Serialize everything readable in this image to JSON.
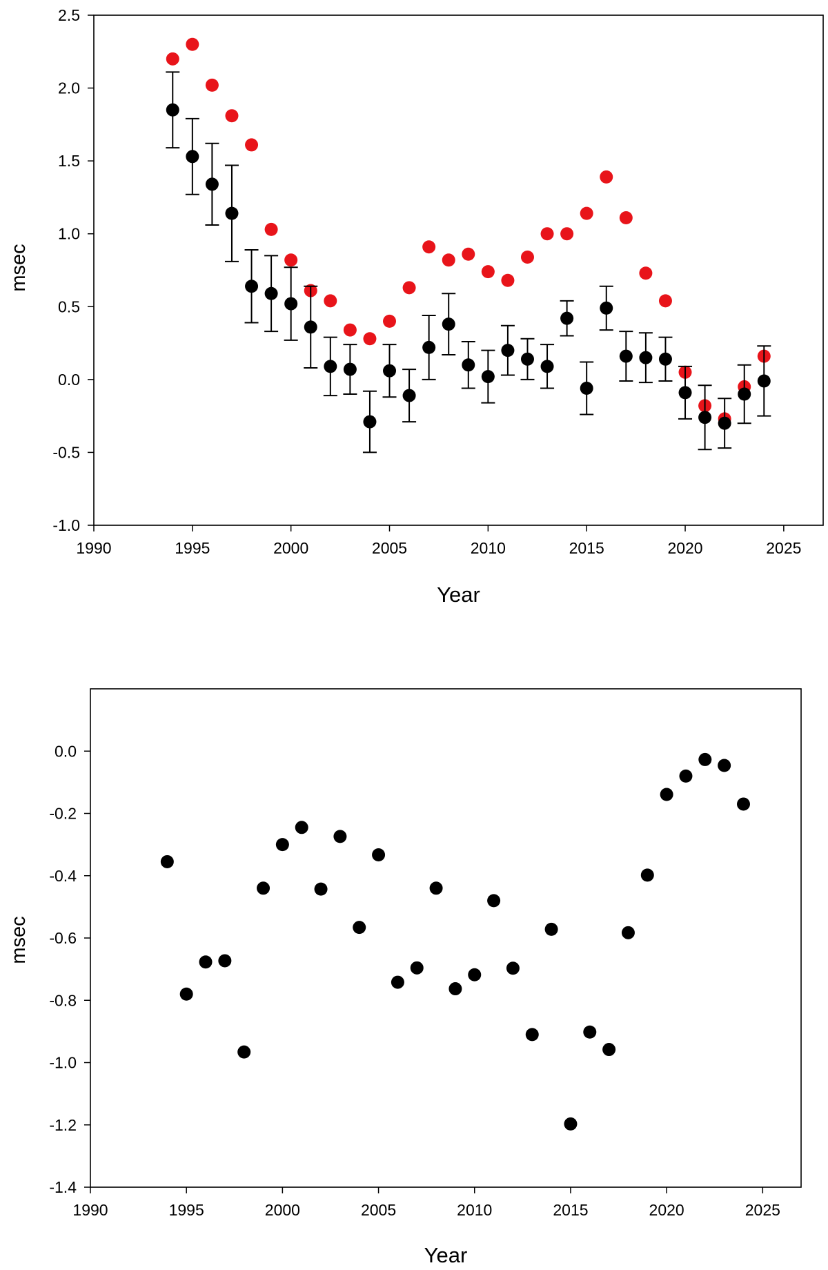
{
  "chart_data": [
    {
      "type": "scatter",
      "title": "",
      "xlabel": "Year",
      "ylabel": "msec",
      "xlim": [
        1990,
        2027
      ],
      "ylim": [
        -1.0,
        2.5
      ],
      "xticks": [
        1990,
        1995,
        2000,
        2005,
        2010,
        2015,
        2020,
        2025
      ],
      "yticks": [
        -1.0,
        -0.5,
        0.0,
        0.5,
        1.0,
        1.5,
        2.0,
        2.5
      ],
      "ytick_decimals": 1,
      "grid": false,
      "legend": "none",
      "series": [
        {
          "color": "#e8141a",
          "error_bars": false,
          "x": [
            1994,
            1995,
            1996,
            1997,
            1998,
            1999,
            2000,
            2001,
            2002,
            2003,
            2004,
            2005,
            2006,
            2007,
            2008,
            2009,
            2010,
            2011,
            2012,
            2013,
            2014,
            2015,
            2016,
            2017,
            2018,
            2019,
            2020,
            2021,
            2022,
            2023,
            2024
          ],
          "y": [
            2.2,
            2.3,
            2.02,
            1.81,
            1.61,
            1.03,
            0.82,
            0.61,
            0.54,
            0.34,
            0.28,
            0.4,
            0.63,
            0.91,
            0.82,
            0.86,
            0.74,
            0.68,
            0.84,
            1.0,
            1.0,
            1.14,
            1.39,
            1.11,
            0.73,
            0.54,
            0.05,
            -0.18,
            -0.27,
            -0.05,
            0.16
          ]
        },
        {
          "color": "#000000",
          "error_bars": true,
          "x": [
            1994,
            1995,
            1996,
            1997,
            1998,
            1999,
            2000,
            2001,
            2002,
            2003,
            2004,
            2005,
            2006,
            2007,
            2008,
            2009,
            2010,
            2011,
            2012,
            2013,
            2014,
            2015,
            2016,
            2017,
            2018,
            2019,
            2020,
            2021,
            2022,
            2023,
            2024
          ],
          "y": [
            1.85,
            1.53,
            1.34,
            1.14,
            0.64,
            0.59,
            0.52,
            0.36,
            0.09,
            0.07,
            -0.29,
            0.06,
            -0.11,
            0.22,
            0.38,
            0.1,
            0.02,
            0.2,
            0.14,
            0.09,
            0.42,
            -0.06,
            0.49,
            0.16,
            0.15,
            0.14,
            -0.09,
            -0.26,
            -0.3,
            -0.1,
            -0.01
          ],
          "error": [
            0.26,
            0.26,
            0.28,
            0.33,
            0.25,
            0.26,
            0.25,
            0.28,
            0.2,
            0.17,
            0.21,
            0.18,
            0.18,
            0.22,
            0.21,
            0.16,
            0.18,
            0.17,
            0.14,
            0.15,
            0.12,
            0.18,
            0.15,
            0.17,
            0.17,
            0.15,
            0.18,
            0.22,
            0.17,
            0.2,
            0.24
          ]
        }
      ]
    },
    {
      "type": "scatter",
      "title": "",
      "xlabel": "Year",
      "ylabel": "msec",
      "xlim": [
        1990,
        2027
      ],
      "ylim": [
        -1.4,
        0.2
      ],
      "xticks": [
        1990,
        1995,
        2000,
        2005,
        2010,
        2015,
        2020,
        2025
      ],
      "yticks": [
        -1.4,
        -1.2,
        -1.0,
        -0.8,
        -0.6,
        -0.4,
        -0.2,
        0.0
      ],
      "ytick_decimals": 1,
      "grid": false,
      "legend": "none",
      "series": [
        {
          "color": "#000000",
          "error_bars": false,
          "x": [
            1994,
            1995,
            1996,
            1997,
            1998,
            1999,
            2000,
            2001,
            2002,
            2003,
            2004,
            2005,
            2006,
            2007,
            2008,
            2009,
            2010,
            2011,
            2012,
            2013,
            2014,
            2015,
            2016,
            2017,
            2018,
            2019,
            2020,
            2021,
            2022,
            2023,
            2024
          ],
          "y": [
            -0.355,
            -0.78,
            -0.677,
            -0.673,
            -0.966,
            -0.44,
            -0.3,
            -0.245,
            -0.443,
            -0.274,
            -0.566,
            -0.333,
            -0.742,
            -0.696,
            -0.44,
            -0.763,
            -0.718,
            -0.48,
            -0.697,
            -0.91,
            -0.572,
            -1.197,
            -0.902,
            -0.958,
            -0.583,
            -0.398,
            -0.139,
            -0.08,
            -0.027,
            -0.046,
            -0.17
          ]
        }
      ]
    }
  ]
}
